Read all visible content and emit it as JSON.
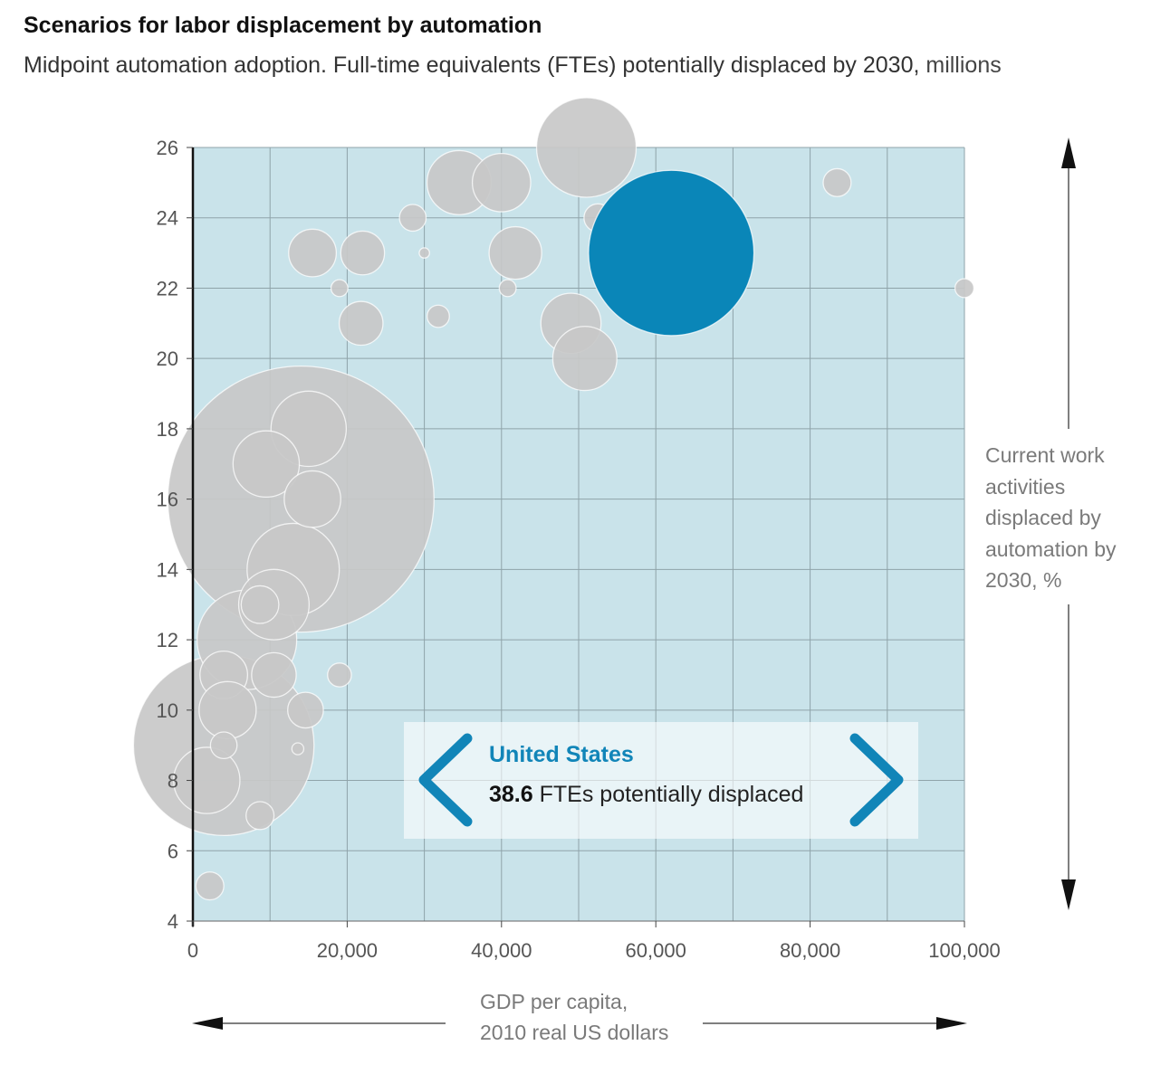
{
  "title": "Scenarios for labor displacement by automation",
  "subtitle": {
    "text": "Midpoint automation adoption. Full-time equivalents (FTEs) potentially displaced by 2030,",
    "units": "millions"
  },
  "y_axis_label": "Current work activities displaced by automation by 2030, %",
  "x_axis_label": {
    "line1": "GDP per capita,",
    "line2": "2010 real US dollars"
  },
  "callout": {
    "country": "United States",
    "value": "38.6",
    "value_suffix": "FTEs potentially displaced",
    "prev_icon": "chevron-left-icon",
    "next_icon": "chevron-right-icon"
  },
  "colors": {
    "plot_background": "#c9e3ea",
    "bubble": "#c8c8c8",
    "highlight": "#0a86b8",
    "gridline": "#8fa3a9",
    "axis_text": "#555555"
  },
  "chart_data": {
    "type": "scatter",
    "bubble": true,
    "title": "Scenarios for labor displacement by automation",
    "xlabel": "GDP per capita, 2010 real US dollars",
    "ylabel": "Current work activities displaced by automation by 2030, %",
    "xlim": [
      0,
      100000
    ],
    "ylim": [
      4,
      26
    ],
    "xticks": [
      0,
      20000,
      40000,
      60000,
      80000,
      100000
    ],
    "xtick_labels": [
      "0",
      "20,000",
      "40,000",
      "60,000",
      "80,000",
      "100,000"
    ],
    "yticks": [
      4,
      6,
      8,
      10,
      12,
      14,
      16,
      18,
      20,
      22,
      24,
      26
    ],
    "ytick_labels": [
      "4",
      "6",
      "8",
      "10",
      "12",
      "14",
      "16",
      "18",
      "20",
      "22",
      "24",
      "26"
    ],
    "grid": true,
    "points": [
      {
        "x": 14000,
        "y": 16,
        "size": 100
      },
      {
        "x": 4000,
        "y": 9,
        "size": 46
      },
      {
        "x": 7000,
        "y": 12,
        "size": 14
      },
      {
        "x": 13000,
        "y": 14,
        "size": 12
      },
      {
        "x": 15000,
        "y": 18,
        "size": 8
      },
      {
        "x": 9500,
        "y": 17,
        "size": 6.2
      },
      {
        "x": 15500,
        "y": 16,
        "size": 4.5
      },
      {
        "x": 10500,
        "y": 13,
        "size": 7
      },
      {
        "x": 8700,
        "y": 13,
        "size": 2
      },
      {
        "x": 4000,
        "y": 11,
        "size": 3.2
      },
      {
        "x": 10500,
        "y": 11,
        "size": 2.8
      },
      {
        "x": 4500,
        "y": 10,
        "size": 4.6
      },
      {
        "x": 14600,
        "y": 10,
        "size": 1.8
      },
      {
        "x": 1800,
        "y": 8,
        "size": 6.2
      },
      {
        "x": 4000,
        "y": 9,
        "size": 1
      },
      {
        "x": 13600,
        "y": 8.9,
        "size": 0.2
      },
      {
        "x": 8700,
        "y": 7,
        "size": 1.1
      },
      {
        "x": 2200,
        "y": 5,
        "size": 1.1
      },
      {
        "x": 19000,
        "y": 11,
        "size": 0.8
      },
      {
        "x": 15500,
        "y": 23,
        "size": 3.2
      },
      {
        "x": 22000,
        "y": 23,
        "size": 2.7
      },
      {
        "x": 21800,
        "y": 21,
        "size": 2.7
      },
      {
        "x": 19000,
        "y": 22,
        "size": 0.4
      },
      {
        "x": 28500,
        "y": 24,
        "size": 1
      },
      {
        "x": 30000,
        "y": 23,
        "size": 0.15
      },
      {
        "x": 31800,
        "y": 21.2,
        "size": 0.7
      },
      {
        "x": 34500,
        "y": 25,
        "size": 5.8
      },
      {
        "x": 40000,
        "y": 25,
        "size": 4.8
      },
      {
        "x": 41800,
        "y": 23,
        "size": 3.9
      },
      {
        "x": 40800,
        "y": 22,
        "size": 0.4
      },
      {
        "x": 51000,
        "y": 26,
        "size": 14
      },
      {
        "x": 49000,
        "y": 21,
        "size": 5.1
      },
      {
        "x": 50800,
        "y": 20,
        "size": 5.8
      },
      {
        "x": 52500,
        "y": 24,
        "size": 1.1
      },
      {
        "x": 83500,
        "y": 25,
        "size": 1.1
      },
      {
        "x": 100000,
        "y": 22,
        "size": 0.5
      },
      {
        "x": 62000,
        "y": 23,
        "size": 38.6,
        "label": "United States",
        "highlight": true
      }
    ]
  }
}
